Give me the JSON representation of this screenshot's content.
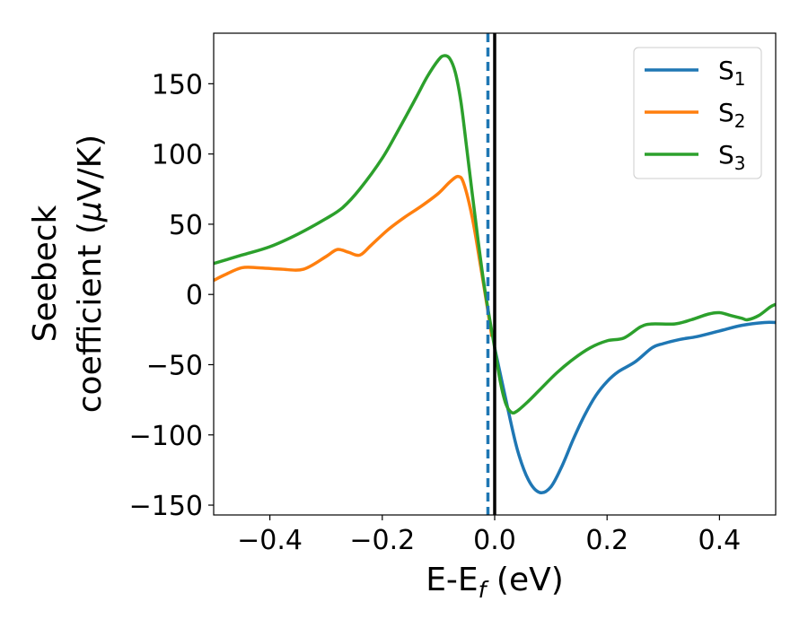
{
  "chart_data": {
    "type": "line",
    "title": "",
    "xlabel": {
      "main": "E-E",
      "sub": "f",
      "unit": " (eV)"
    },
    "ylabel": {
      "line1": "Seebeck",
      "line2_main": "coefficient  (",
      "line2_mu": "μ",
      "line2_unit": "V/K)"
    },
    "xlim": [
      -0.5,
      0.5
    ],
    "ylim": [
      -157,
      186
    ],
    "x_ticks": [
      -0.4,
      -0.2,
      0.0,
      0.2,
      0.4
    ],
    "x_tick_labels": [
      "−0.4",
      "−0.2",
      "0.0",
      "0.2",
      "0.4"
    ],
    "y_ticks": [
      150,
      100,
      50,
      0,
      -50,
      -100,
      -150
    ],
    "y_tick_labels": [
      "150",
      "100",
      "50",
      "0",
      "−50",
      "−100",
      "−150"
    ],
    "grid": false,
    "legend_position": "top-right",
    "vlines": [
      {
        "x": -0.012,
        "style": "dashed",
        "color": "#1f77b4"
      },
      {
        "x": 0.0,
        "style": "solid",
        "color": "#000000"
      }
    ],
    "series": [
      {
        "name": "S",
        "sub": "1",
        "color": "#1f77b4",
        "points": [
          [
            0.0,
            -38
          ],
          [
            0.02,
            -75
          ],
          [
            0.04,
            -110
          ],
          [
            0.06,
            -132
          ],
          [
            0.08,
            -141
          ],
          [
            0.1,
            -137
          ],
          [
            0.12,
            -122
          ],
          [
            0.14,
            -103
          ],
          [
            0.16,
            -86
          ],
          [
            0.18,
            -72
          ],
          [
            0.2,
            -62
          ],
          [
            0.22,
            -55
          ],
          [
            0.25,
            -48
          ],
          [
            0.28,
            -38
          ],
          [
            0.3,
            -35
          ],
          [
            0.33,
            -32
          ],
          [
            0.36,
            -30
          ],
          [
            0.4,
            -26
          ],
          [
            0.44,
            -22
          ],
          [
            0.48,
            -20
          ],
          [
            0.5,
            -20
          ]
        ]
      },
      {
        "name": "S",
        "sub": "2",
        "color": "#ff7f0e",
        "points": [
          [
            -0.5,
            10
          ],
          [
            -0.48,
            14
          ],
          [
            -0.45,
            19
          ],
          [
            -0.42,
            19
          ],
          [
            -0.38,
            18
          ],
          [
            -0.34,
            18
          ],
          [
            -0.3,
            27
          ],
          [
            -0.28,
            32
          ],
          [
            -0.26,
            30
          ],
          [
            -0.24,
            28
          ],
          [
            -0.22,
            35
          ],
          [
            -0.19,
            46
          ],
          [
            -0.16,
            55
          ],
          [
            -0.13,
            63
          ],
          [
            -0.1,
            72
          ],
          [
            -0.08,
            80
          ],
          [
            -0.065,
            84
          ],
          [
            -0.055,
            79
          ],
          [
            -0.04,
            55
          ],
          [
            -0.025,
            20
          ],
          [
            -0.012,
            -12
          ],
          [
            -0.005,
            -30
          ]
        ]
      },
      {
        "name": "S",
        "sub": "3",
        "color": "#2ca02c",
        "points": [
          [
            -0.5,
            22
          ],
          [
            -0.45,
            28
          ],
          [
            -0.4,
            34
          ],
          [
            -0.35,
            43
          ],
          [
            -0.3,
            54
          ],
          [
            -0.27,
            62
          ],
          [
            -0.24,
            75
          ],
          [
            -0.2,
            97
          ],
          [
            -0.17,
            118
          ],
          [
            -0.14,
            140
          ],
          [
            -0.12,
            155
          ],
          [
            -0.1,
            167
          ],
          [
            -0.09,
            170
          ],
          [
            -0.08,
            168
          ],
          [
            -0.07,
            158
          ],
          [
            -0.06,
            137
          ],
          [
            -0.05,
            105
          ],
          [
            -0.04,
            72
          ],
          [
            -0.03,
            40
          ],
          [
            -0.02,
            10
          ],
          [
            -0.01,
            -15
          ],
          [
            0.0,
            -38
          ],
          [
            0.01,
            -62
          ],
          [
            0.02,
            -78
          ],
          [
            0.03,
            -84
          ],
          [
            0.04,
            -83
          ],
          [
            0.06,
            -76
          ],
          [
            0.08,
            -68
          ],
          [
            0.11,
            -56
          ],
          [
            0.14,
            -46
          ],
          [
            0.17,
            -38
          ],
          [
            0.2,
            -33
          ],
          [
            0.23,
            -31
          ],
          [
            0.26,
            -23
          ],
          [
            0.28,
            -21
          ],
          [
            0.32,
            -21
          ],
          [
            0.35,
            -18
          ],
          [
            0.38,
            -14
          ],
          [
            0.4,
            -13
          ],
          [
            0.42,
            -15
          ],
          [
            0.44,
            -17
          ],
          [
            0.45,
            -18
          ],
          [
            0.47,
            -15
          ],
          [
            0.49,
            -9
          ],
          [
            0.5,
            -7
          ]
        ]
      }
    ]
  }
}
